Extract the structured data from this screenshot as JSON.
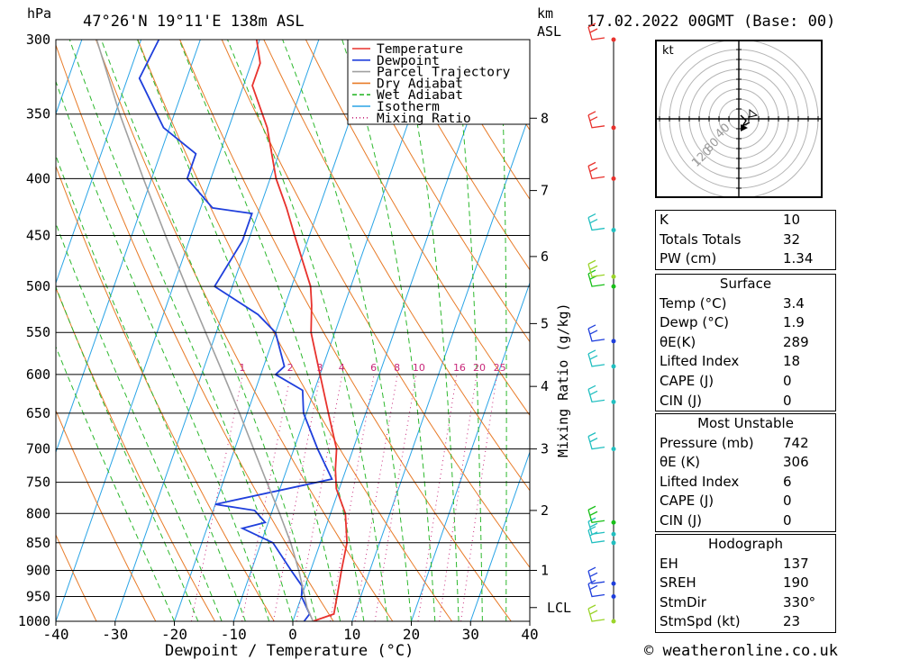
{
  "header": {
    "pressure_unit": "hPa",
    "location": "47°26'N  19°11'E  138m  ASL",
    "km_label": "km",
    "asl_label": "ASL",
    "date": "17.02.2022  00GMT  (Base: 00)"
  },
  "footer": {
    "x_axis_label": "Dewpoint / Temperature (°C)",
    "watermark": "© weatheronline.co.uk",
    "mixing_axis_label": "Mixing Ratio (g/kg)"
  },
  "chart_data": {
    "type": "line",
    "title": "47°26'N 19°11'E 138m ASL",
    "xlabel": "Dewpoint / Temperature (°C)",
    "ylabel": "hPa",
    "xlim": [
      -40,
      40
    ],
    "ylim": [
      1000,
      300
    ],
    "y_scale": "log",
    "skew": true,
    "grid": true,
    "pressure_ticks": [
      300,
      350,
      400,
      450,
      500,
      550,
      600,
      650,
      700,
      750,
      800,
      850,
      900,
      950,
      1000
    ],
    "temperature_ticks": [
      -40,
      -30,
      -20,
      -10,
      0,
      10,
      20,
      30,
      40
    ],
    "km_ticks": [
      {
        "label": "1",
        "p": 900
      },
      {
        "label": "2",
        "p": 795
      },
      {
        "label": "3",
        "p": 700
      },
      {
        "label": "4",
        "p": 615
      },
      {
        "label": "5",
        "p": 540
      },
      {
        "label": "6",
        "p": 470
      },
      {
        "label": "7",
        "p": 410
      },
      {
        "label": "8",
        "p": 353
      },
      {
        "label": "LCL",
        "p": 972
      }
    ],
    "mixing_ratio_labels": [
      "1",
      "2",
      "3",
      "4",
      "6",
      "8",
      "10",
      "16",
      "20",
      "25"
    ],
    "mixing_ratio_values": [
      1,
      2,
      3,
      4,
      6,
      8,
      10,
      16,
      20,
      25
    ],
    "legend": {
      "placement": "top-center",
      "entries": [
        {
          "name": "Temperature",
          "color": "#e8322d",
          "style": "solid"
        },
        {
          "name": "Dewpoint",
          "color": "#1f3fdc",
          "style": "solid"
        },
        {
          "name": "Parcel Trajectory",
          "color": "#a0a0a0",
          "style": "solid"
        },
        {
          "name": "Dry Adiabat",
          "color": "#e87b28",
          "style": "solid"
        },
        {
          "name": "Wet Adiabat",
          "color": "#2db82d",
          "style": "dashed"
        },
        {
          "name": "Isotherm",
          "color": "#2aa4e6",
          "style": "solid"
        },
        {
          "name": "Mixing Ratio",
          "color": "#c8287a",
          "style": "dotted"
        }
      ]
    },
    "series": [
      {
        "name": "Temperature",
        "color": "#e8322d",
        "points": [
          [
            1000,
            3.4
          ],
          [
            985,
            6.5
          ],
          [
            950,
            6.0
          ],
          [
            900,
            5.2
          ],
          [
            850,
            4.5
          ],
          [
            800,
            2.5
          ],
          [
            760,
            -0.5
          ],
          [
            730,
            -1.8
          ],
          [
            700,
            -2.8
          ],
          [
            650,
            -6.3
          ],
          [
            600,
            -10.0
          ],
          [
            550,
            -14.0
          ],
          [
            520,
            -15.5
          ],
          [
            500,
            -16.8
          ],
          [
            450,
            -22.5
          ],
          [
            425,
            -25.5
          ],
          [
            400,
            -29.0
          ],
          [
            360,
            -33.5
          ],
          [
            330,
            -38.5
          ],
          [
            315,
            -38.5
          ],
          [
            300,
            -40.5
          ]
        ]
      },
      {
        "name": "Dewpoint",
        "color": "#1f3fdc",
        "points": [
          [
            1000,
            1.9
          ],
          [
            985,
            2.4
          ],
          [
            950,
            0.0
          ],
          [
            930,
            -0.5
          ],
          [
            900,
            -3.3
          ],
          [
            850,
            -8.0
          ],
          [
            825,
            -14.0
          ],
          [
            815,
            -10.5
          ],
          [
            795,
            -13.0
          ],
          [
            785,
            -20.0
          ],
          [
            745,
            -1.8
          ],
          [
            700,
            -6.0
          ],
          [
            650,
            -10.5
          ],
          [
            620,
            -12.0
          ],
          [
            600,
            -17.5
          ],
          [
            590,
            -16.5
          ],
          [
            550,
            -20.0
          ],
          [
            530,
            -24.0
          ],
          [
            500,
            -33.0
          ],
          [
            455,
            -31.0
          ],
          [
            430,
            -31.0
          ],
          [
            425,
            -38.0
          ],
          [
            400,
            -44.0
          ],
          [
            380,
            -44.0
          ],
          [
            360,
            -51.0
          ],
          [
            325,
            -58.0
          ],
          [
            300,
            -57.0
          ]
        ]
      },
      {
        "name": "Parcel Trajectory",
        "color": "#a0a0a0",
        "points": [
          [
            1000,
            3.4
          ],
          [
            972,
            1.6
          ],
          [
            900,
            -2.0
          ],
          [
            850,
            -5.0
          ],
          [
            800,
            -8.6
          ],
          [
            750,
            -12.6
          ],
          [
            700,
            -16.8
          ],
          [
            650,
            -21.3
          ],
          [
            600,
            -26.3
          ],
          [
            550,
            -31.8
          ],
          [
            500,
            -37.8
          ],
          [
            450,
            -44.3
          ],
          [
            400,
            -51.4
          ],
          [
            350,
            -59.2
          ],
          [
            300,
            -67.5
          ]
        ]
      }
    ],
    "wind_barbs": [
      {
        "p": 1000,
        "marker": "yellowgreen"
      },
      {
        "p": 950,
        "marker": "blue"
      },
      {
        "p": 925,
        "marker": "blue"
      },
      {
        "p": 850,
        "marker": "teal"
      },
      {
        "p": 835,
        "marker": "teal"
      },
      {
        "p": 815,
        "marker": "green"
      },
      {
        "p": 700,
        "marker": "teal"
      },
      {
        "p": 635,
        "marker": "teal"
      },
      {
        "p": 590,
        "marker": "teal"
      },
      {
        "p": 560,
        "marker": "blue"
      },
      {
        "p": 500,
        "marker": "green"
      },
      {
        "p": 490,
        "marker": "yellowgreen"
      },
      {
        "p": 445,
        "marker": "teal"
      },
      {
        "p": 400,
        "marker": "red"
      },
      {
        "p": 360,
        "marker": "red"
      },
      {
        "p": 300,
        "marker": "red"
      }
    ],
    "hodograph": {
      "unit_label": "kt",
      "ring_labels": [
        "40",
        "80",
        "120"
      ]
    }
  },
  "params": {
    "group1": [
      {
        "label": "K",
        "value": "10"
      },
      {
        "label": "Totals Totals",
        "value": "32"
      },
      {
        "label": "PW (cm)",
        "value": "1.34"
      }
    ],
    "surface": {
      "title": "Surface",
      "rows": [
        {
          "label": "Temp (°C)",
          "value": "3.4"
        },
        {
          "label": "Dewp (°C)",
          "value": "1.9"
        },
        {
          "label": "θE(K)",
          "value": "289"
        },
        {
          "label": "Lifted Index",
          "value": "18"
        },
        {
          "label": "CAPE (J)",
          "value": "0"
        },
        {
          "label": "CIN (J)",
          "value": "0"
        }
      ]
    },
    "most_unstable": {
      "title": "Most Unstable",
      "rows": [
        {
          "label": "Pressure (mb)",
          "value": "742"
        },
        {
          "label": "θE (K)",
          "value": "306"
        },
        {
          "label": "Lifted Index",
          "value": "6"
        },
        {
          "label": "CAPE (J)",
          "value": "0"
        },
        {
          "label": "CIN (J)",
          "value": "0"
        }
      ]
    },
    "hodograph": {
      "title": "Hodograph",
      "rows": [
        {
          "label": "EH",
          "value": "137"
        },
        {
          "label": "SREH",
          "value": "190"
        },
        {
          "label": "StmDir",
          "value": "330°"
        },
        {
          "label": "StmSpd (kt)",
          "value": "23"
        }
      ]
    }
  },
  "colors": {
    "temperature": "#e8322d",
    "dewpoint": "#1f3fdc",
    "parcel": "#a0a0a0",
    "dry_adiabat": "#e87b28",
    "wet_adiabat": "#2db82d",
    "isotherm": "#2aa4e6",
    "mixing_ratio": "#c8287a",
    "barb_red": "#e8322d",
    "barb_teal": "#22bfc0",
    "barb_blue": "#1f3fdc",
    "barb_green": "#18c018",
    "barb_yellowgreen": "#9bd42a"
  }
}
